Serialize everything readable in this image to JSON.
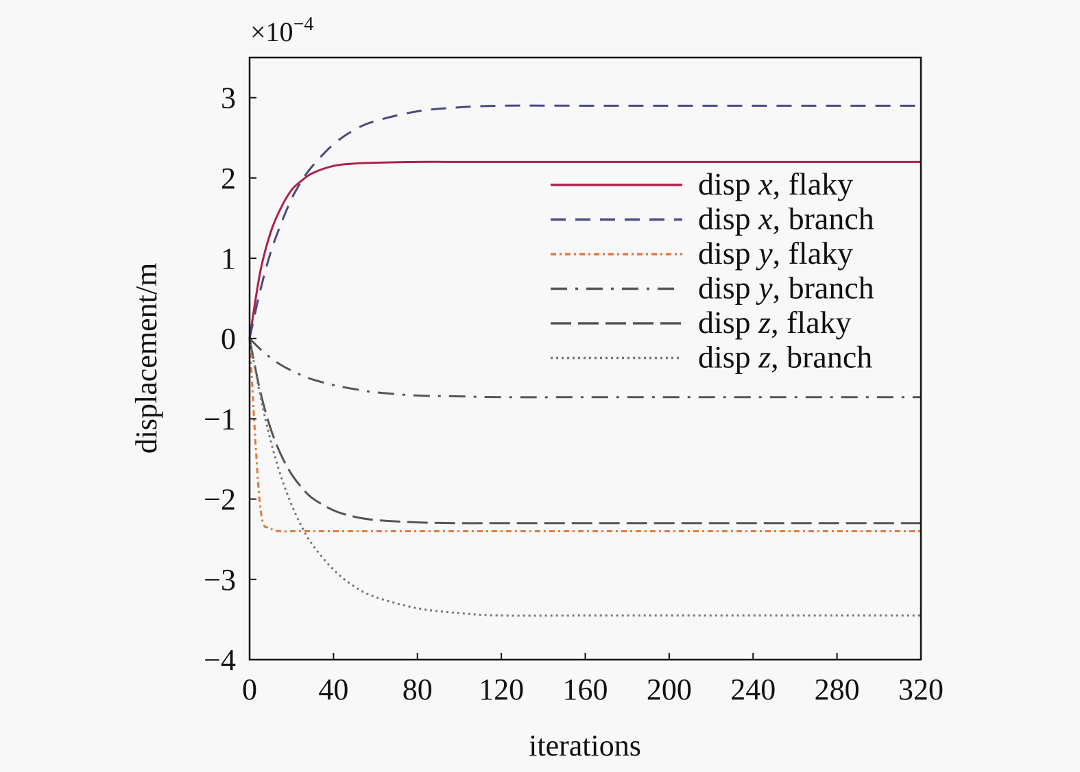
{
  "chart_data": {
    "type": "line",
    "title": "",
    "xlabel": "iterations",
    "ylabel": "displacement/m",
    "y_multiplier": "×10",
    "y_multiplier_exp": "−4",
    "xlim": [
      0,
      320
    ],
    "ylim": [
      -4,
      3.5
    ],
    "xticks": [
      0,
      40,
      80,
      120,
      160,
      200,
      240,
      280,
      320
    ],
    "yticks": [
      -4,
      -3,
      -2,
      -1,
      0,
      1,
      2,
      3
    ],
    "ytick_labels": [
      "−4",
      "−3",
      "−2",
      "−1",
      "0",
      "1",
      "2",
      "3"
    ],
    "grid": false,
    "legend_position": "upper-right",
    "x": [
      0,
      5,
      10,
      15,
      20,
      25,
      30,
      40,
      50,
      60,
      80,
      100,
      120,
      160,
      200,
      240,
      280,
      320
    ],
    "series": [
      {
        "name": "disp x, flaky",
        "legend": {
          "pre": "disp ",
          "var": "x",
          "post": ", flaky"
        },
        "color": "#b0204a",
        "style": "solid",
        "values": [
          0,
          0.82,
          1.32,
          1.63,
          1.85,
          1.97,
          2.06,
          2.15,
          2.18,
          2.19,
          2.2,
          2.2,
          2.2,
          2.2,
          2.2,
          2.2,
          2.2,
          2.2
        ]
      },
      {
        "name": "disp x, branch",
        "legend": {
          "pre": "disp ",
          "var": "x",
          "post": ", branch"
        },
        "color": "#4a4a80",
        "style": "dashed",
        "values": [
          0,
          0.59,
          1.07,
          1.43,
          1.74,
          1.97,
          2.15,
          2.42,
          2.6,
          2.71,
          2.83,
          2.88,
          2.9,
          2.9,
          2.9,
          2.9,
          2.9,
          2.9
        ]
      },
      {
        "name": "disp y, flaky",
        "legend": {
          "pre": "disp ",
          "var": "y",
          "post": ", flaky"
        },
        "color": "#e07a3a",
        "style": "dash-dot-small",
        "values": [
          0,
          -2.08,
          -2.36,
          -2.4,
          -2.4,
          -2.4,
          -2.4,
          -2.4,
          -2.4,
          -2.4,
          -2.4,
          -2.4,
          -2.4,
          -2.4,
          -2.4,
          -2.4,
          -2.4,
          -2.4
        ]
      },
      {
        "name": "disp y, branch",
        "legend": {
          "pre": "disp ",
          "var": "y",
          "post": ", branch"
        },
        "color": "#555555",
        "style": "dash-dot",
        "values": [
          0,
          -0.13,
          -0.24,
          -0.33,
          -0.4,
          -0.46,
          -0.51,
          -0.58,
          -0.63,
          -0.67,
          -0.71,
          -0.72,
          -0.73,
          -0.73,
          -0.73,
          -0.73,
          -0.73,
          -0.73
        ]
      },
      {
        "name": "disp z, flaky",
        "legend": {
          "pre": "disp ",
          "var": "z",
          "post": ", flaky"
        },
        "color": "#555555",
        "style": "long-dash",
        "values": [
          0,
          -0.65,
          -1.12,
          -1.45,
          -1.69,
          -1.86,
          -1.99,
          -2.14,
          -2.22,
          -2.26,
          -2.29,
          -2.3,
          -2.3,
          -2.3,
          -2.3,
          -2.3,
          -2.3,
          -2.3
        ]
      },
      {
        "name": "disp z, branch",
        "legend": {
          "pre": "disp ",
          "var": "z",
          "post": ", branch"
        },
        "color": "#777777",
        "style": "dotted",
        "values": [
          0,
          -0.7,
          -1.27,
          -1.72,
          -2.07,
          -2.35,
          -2.57,
          -2.88,
          -3.09,
          -3.22,
          -3.36,
          -3.42,
          -3.45,
          -3.45,
          -3.45,
          -3.45,
          -3.45,
          -3.45
        ]
      }
    ]
  }
}
